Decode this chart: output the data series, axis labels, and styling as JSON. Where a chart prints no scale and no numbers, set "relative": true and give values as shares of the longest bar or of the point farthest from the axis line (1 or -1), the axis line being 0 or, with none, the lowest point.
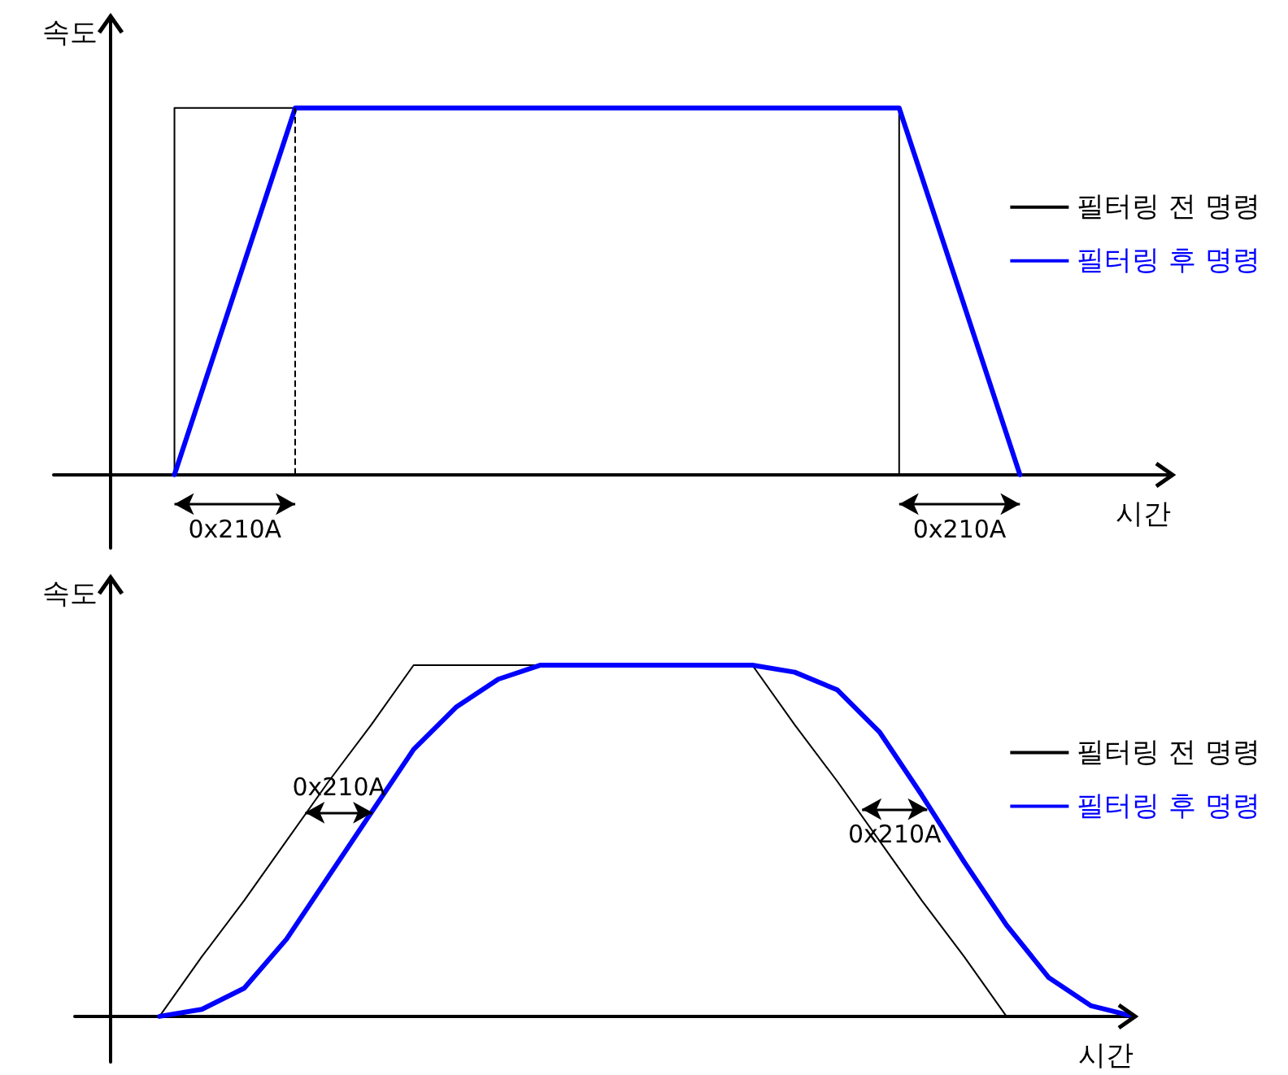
{
  "chart_data": [
    {
      "type": "line",
      "relative": true,
      "xlabel": "시간",
      "ylabel": "속도",
      "grid": false,
      "legend": "right",
      "marker": "none",
      "line_style": "solid",
      "categories": [
        null,
        null,
        null,
        null,
        null,
        null,
        null,
        null,
        null,
        null,
        null,
        null,
        null,
        null,
        null,
        null,
        null,
        null,
        null,
        null,
        null,
        null,
        null,
        null,
        null,
        null,
        null,
        null,
        null,
        null,
        null,
        null,
        null,
        null,
        null,
        null,
        null,
        null
      ],
      "series": [
        {
          "name": "필터링 전 명령",
          "type": "step",
          "color": "#000000",
          "values": [
            null,
            null,
            null,
            null,
            0,
            1,
            1,
            1,
            1,
            null,
            null,
            null,
            null,
            null,
            null,
            null,
            null,
            null,
            null,
            null,
            null,
            null,
            null,
            null,
            null,
            null,
            null,
            null,
            1,
            0,
            null,
            null,
            null,
            null,
            null,
            null,
            null,
            null
          ]
        },
        {
          "name": "필터링 후 명령",
          "color": "#0000ff",
          "values": [
            null,
            null,
            null,
            null,
            0,
            0.25,
            0.5,
            0.75,
            1,
            1,
            1,
            1,
            1,
            1,
            1,
            1,
            1,
            1,
            1,
            1,
            1,
            1,
            1,
            1,
            1,
            1,
            1,
            1,
            1,
            0.75,
            0.5,
            0.25,
            0,
            null,
            null,
            null,
            null,
            null
          ]
        }
      ],
      "annotations": [
        "0x210A",
        "0x210A"
      ]
    },
    {
      "type": "line",
      "relative": true,
      "xlabel": "시간",
      "ylabel": "속도",
      "grid": false,
      "legend": "right",
      "marker": "none",
      "line_style": "solid",
      "categories": [
        null,
        null,
        null,
        null,
        null,
        null,
        null,
        null,
        null,
        null,
        null,
        null,
        null,
        null,
        null,
        null,
        null,
        null,
        null,
        null,
        null,
        null,
        null,
        null,
        null,
        null
      ],
      "series": [
        {
          "name": "필터링 전 명령",
          "color": "#000000",
          "values": [
            null,
            null,
            0,
            0.17,
            0.33,
            0.5,
            0.67,
            0.83,
            1,
            1,
            1,
            null,
            null,
            null,
            null,
            null,
            1,
            0.83,
            0.67,
            0.5,
            0.33,
            0.17,
            0,
            null,
            null,
            null
          ]
        },
        {
          "name": "필터링 후 명령",
          "color": "#0000ff",
          "values": [
            null,
            null,
            0,
            0.02,
            0.08,
            0.22,
            0.4,
            0.58,
            0.76,
            0.88,
            0.96,
            1,
            1,
            1,
            1,
            1,
            1,
            0.98,
            0.93,
            0.81,
            0.63,
            0.44,
            0.26,
            0.11,
            0.03,
            0
          ]
        }
      ],
      "annotations": [
        "0x210A",
        "0x210A"
      ]
    }
  ]
}
